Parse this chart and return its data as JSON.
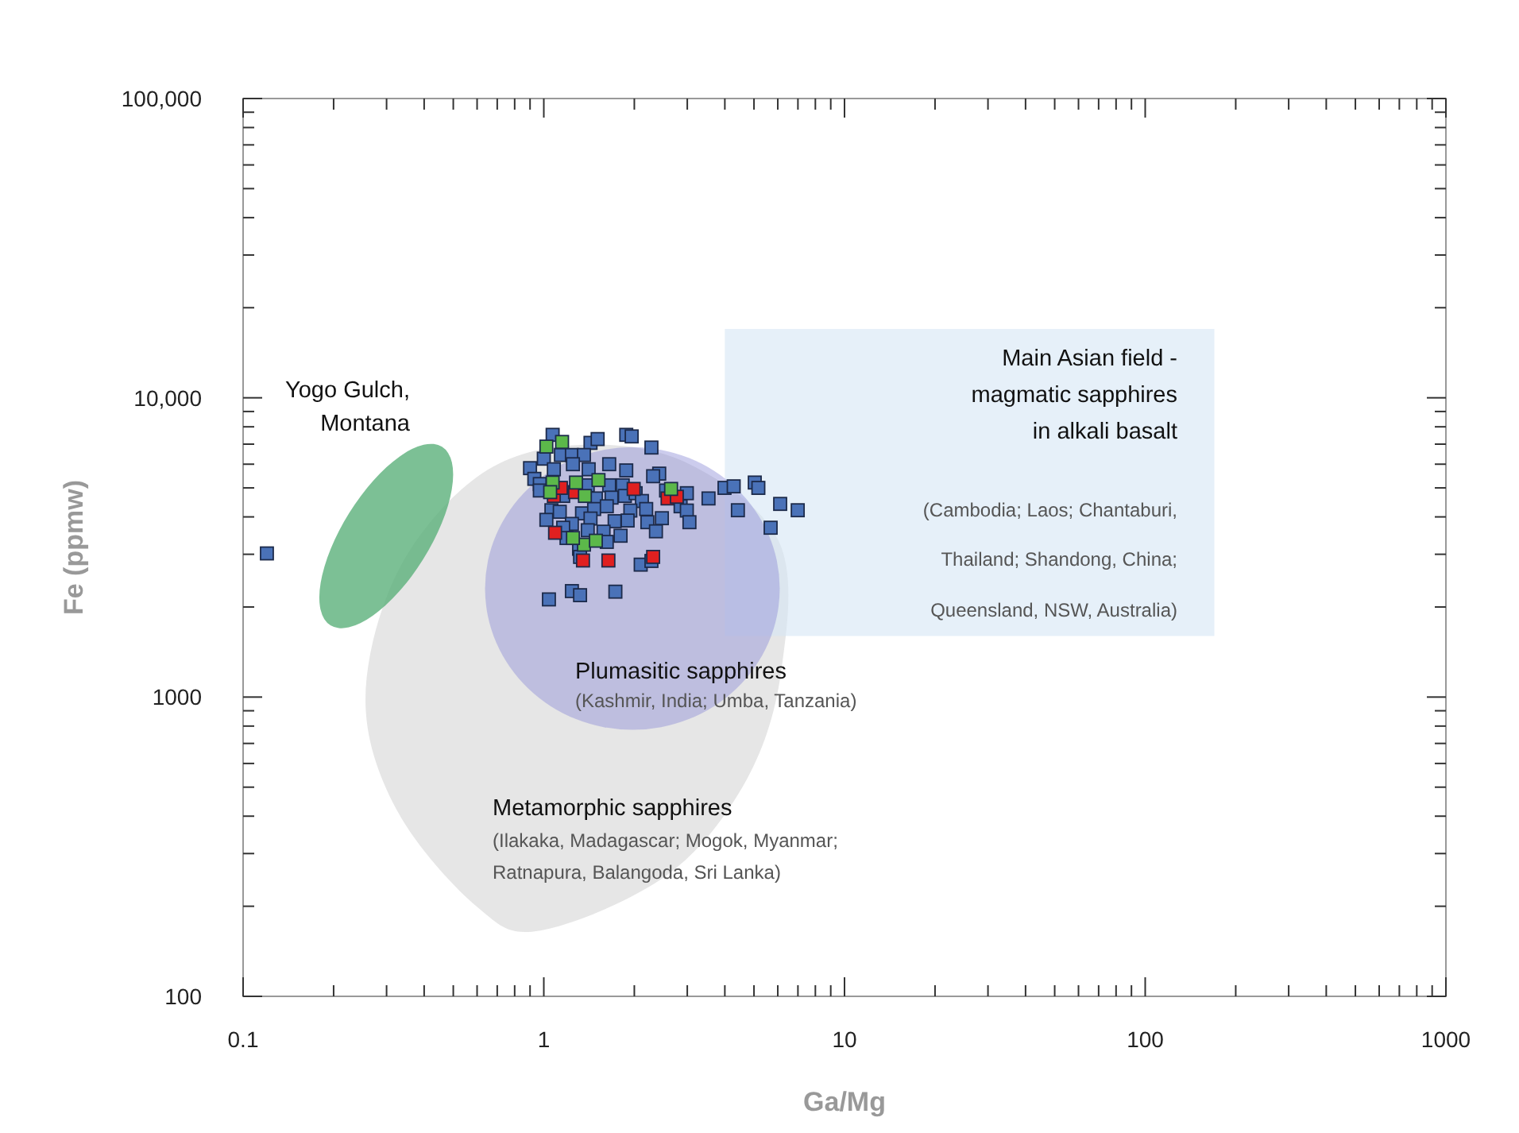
{
  "chart_data": {
    "type": "scatter",
    "xlabel": "Ga/Mg",
    "ylabel": "Fe (ppmw)",
    "log": "xy",
    "marker": "square",
    "grid": false,
    "xlim": [
      0.1,
      1000
    ],
    "xticks": [
      0.1,
      1,
      10,
      100,
      1000
    ],
    "ylim": [
      100,
      100000
    ],
    "yticks": [
      100,
      1000,
      {
        "value": 10000,
        "label": "10,000"
      },
      {
        "value": 100000,
        "label": "100,000"
      }
    ],
    "series": [
      {
        "color": "#4a72b8",
        "x": [
          1.07,
          1.43,
          1.51,
          1.88,
          1.96,
          2.28,
          0.9,
          1.0,
          1.14,
          1.24,
          1.36,
          0.93,
          0.97,
          1.08,
          1.25,
          1.41,
          1.65,
          1.88,
          2.42,
          2.31,
          0.97,
          1.16,
          1.4,
          1.65,
          1.83,
          1.49,
          1.68,
          1.86,
          2.02,
          2.12,
          2.55,
          2.99,
          1.06,
          1.13,
          1.34,
          1.47,
          1.62,
          1.94,
          2.19,
          2.85,
          2.99,
          1.02,
          1.24,
          1.43,
          1.72,
          1.9,
          2.21,
          2.47,
          3.05,
          1.16,
          1.4,
          1.58,
          1.8,
          2.36,
          1.19,
          1.62,
          1.31,
          1.32,
          2.1,
          2.28,
          1.04,
          1.24,
          1.32,
          1.73,
          3.53,
          3.99,
          4.28,
          5.03,
          5.17,
          4.42,
          6.11,
          6.99,
          5.68,
          0.12
        ],
        "values": [
          7520,
          7070,
          7280,
          7520,
          7430,
          6820,
          5820,
          6260,
          6440,
          6440,
          6440,
          5360,
          5150,
          5770,
          6000,
          5770,
          6000,
          5720,
          5580,
          5470,
          4900,
          4700,
          5100,
          5100,
          5100,
          4610,
          4640,
          4700,
          4800,
          4520,
          4900,
          4800,
          4210,
          4160,
          4110,
          4250,
          4340,
          4200,
          4250,
          4340,
          4200,
          3910,
          3790,
          3950,
          3870,
          3890,
          3840,
          3960,
          3840,
          3680,
          3610,
          3570,
          3460,
          3580,
          3400,
          3300,
          3130,
          2940,
          2770,
          2850,
          2120,
          2260,
          2190,
          2250,
          4610,
          5000,
          5060,
          5210,
          5000,
          4210,
          4420,
          4210,
          3680,
          3020
        ]
      },
      {
        "color": "#5cb84a",
        "x": [
          1.02,
          1.15,
          1.07,
          1.28,
          1.37,
          1.52,
          2.65,
          1.36,
          1.49,
          1.25,
          1.05
        ],
        "values": [
          6870,
          7120,
          5210,
          5210,
          4700,
          5310,
          4960,
          3230,
          3330,
          3400,
          4840
        ]
      },
      {
        "color": "#e02020",
        "x": [
          1.08,
          1.14,
          1.27,
          1.99,
          2.58,
          2.77,
          1.09,
          1.35,
          1.64,
          2.31
        ],
        "values": [
          4700,
          5000,
          4840,
          4960,
          4610,
          4670,
          3540,
          2860,
          2860,
          2940
        ]
      }
    ],
    "annotations": [
      "Yogo Gulch,",
      "Montana",
      "Main Asian field -",
      "magmatic sapphires",
      "in alkali basalt",
      "(Cambodia; Laos; Chantaburi,",
      "Thailand; Shandong, China;",
      "Queensland, NSW, Australia)",
      "Plumasitic sapphires",
      "(Kashmir, India; Umba, Tanzania)",
      "Metamorphic sapphires",
      "(Ilakaka, Madagascar; Mogok, Myanmar;",
      "Ratnapura, Balangoda, Sri Lanka)"
    ]
  }
}
